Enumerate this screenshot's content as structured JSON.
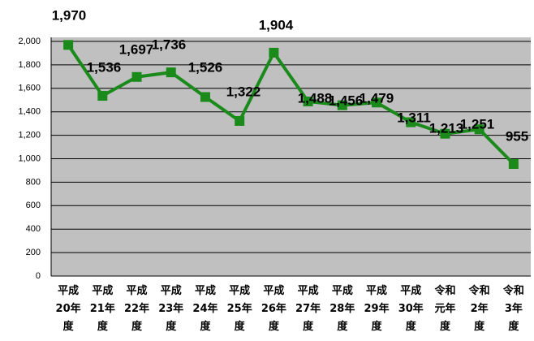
{
  "chart_data": {
    "type": "line",
    "categories": [
      "平成20年度",
      "平成21年度",
      "平成22年度",
      "平成23年度",
      "平成24年度",
      "平成25年度",
      "平成26年度",
      "平成27年度",
      "平成28年度",
      "平成29年度",
      "平成30年度",
      "令和元年度",
      "令和2年度",
      "令和3年度"
    ],
    "series": [
      {
        "color": "#1a8a1a",
        "values": [
          1970,
          1536,
          1697,
          1736,
          1526,
          1322,
          1904,
          1488,
          1456,
          1479,
          1311,
          1213,
          1251,
          955
        ],
        "value_labels": [
          "1,970",
          "1,536",
          "1,697",
          "1,736",
          "1,526",
          "1,322",
          "1,904",
          "1,488",
          "1,456",
          "1,479",
          "1,311",
          "1,213",
          "1,251",
          "955"
        ]
      }
    ],
    "ylim": [
      0,
      2000
    ],
    "yticks": [
      0,
      200,
      400,
      600,
      800,
      {
        "value": 1000,
        "label": "1,000"
      },
      {
        "value": 1200,
        "label": "1,200"
      },
      {
        "value": 1400,
        "label": "1,400"
      },
      {
        "value": 1600,
        "label": "1,600"
      },
      {
        "value": 1800,
        "label": "1,800"
      },
      {
        "value": 2000,
        "label": "2,000"
      }
    ],
    "grid": true
  }
}
